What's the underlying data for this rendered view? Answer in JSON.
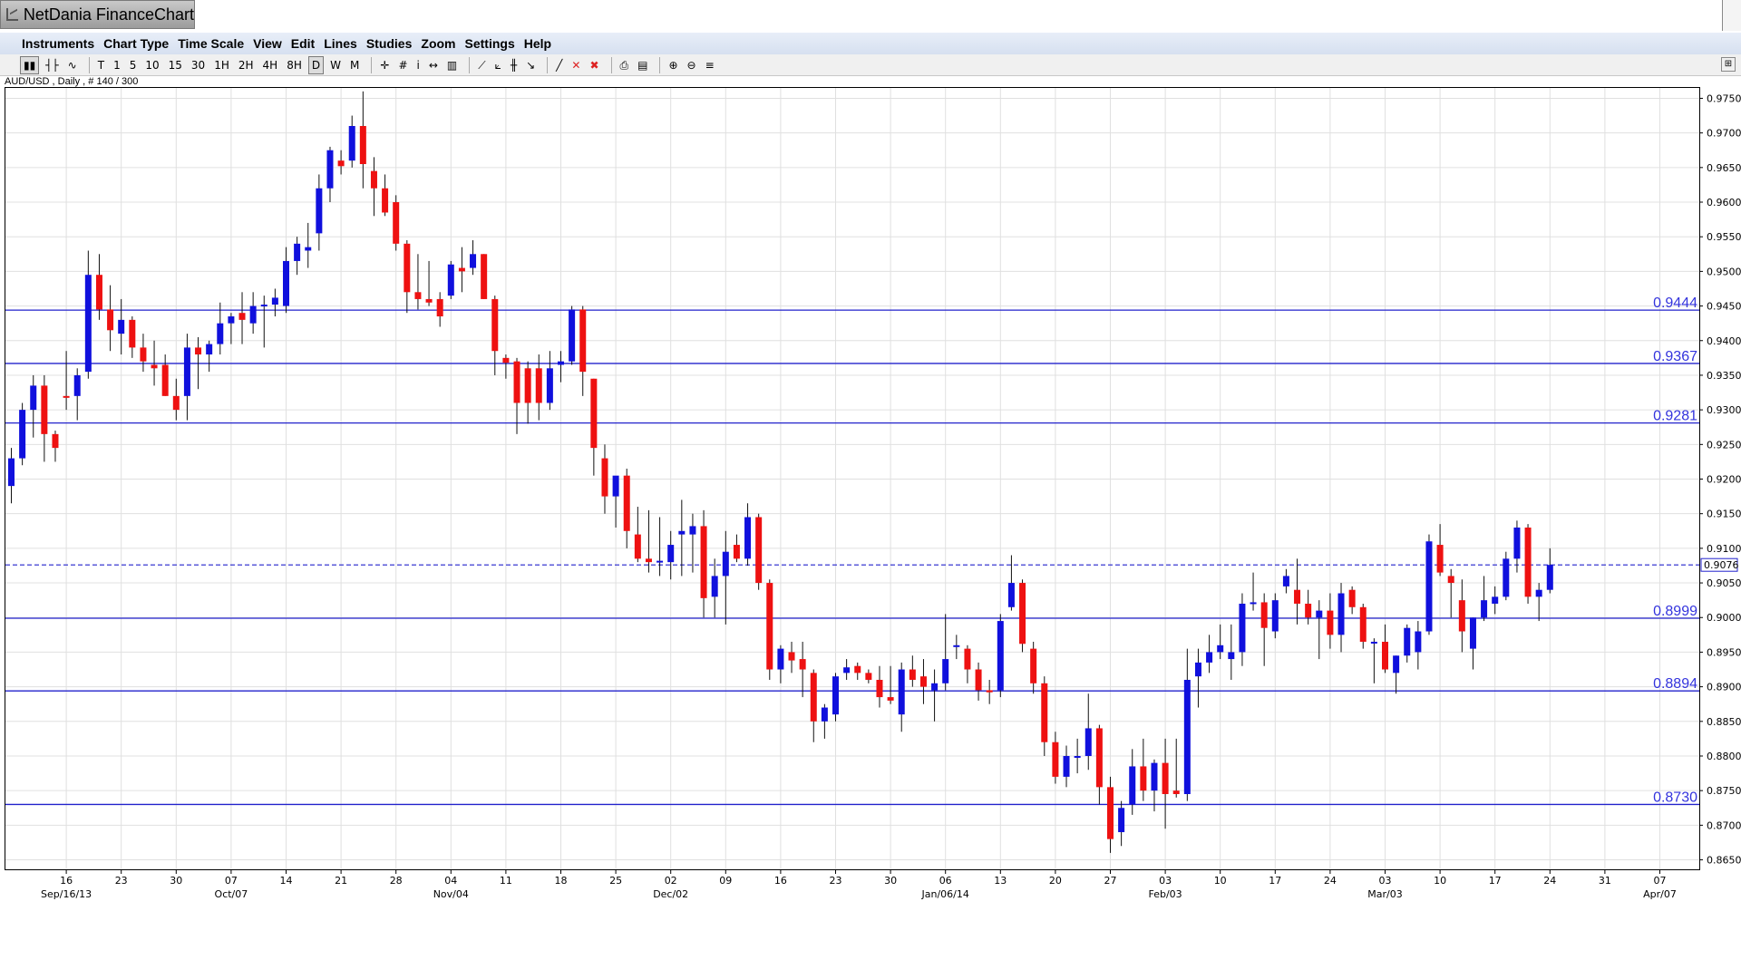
{
  "window": {
    "title": "NetDania FinanceChart"
  },
  "menu": [
    "Instruments",
    "Chart Type",
    "Time Scale",
    "View",
    "Edit",
    "Lines",
    "Studies",
    "Zoom",
    "Settings",
    "Help"
  ],
  "toolbar": {
    "timeframes": [
      "T",
      "1",
      "5",
      "10",
      "15",
      "30",
      "1H",
      "2H",
      "4H",
      "8H",
      "D",
      "W",
      "M"
    ],
    "active_timeframe": "D"
  },
  "colors": {
    "bull": "#1010dd",
    "bear": "#ee1111",
    "levels": "#2222cc",
    "last_price": "#2222cc"
  },
  "chart_data": {
    "type": "candlestick",
    "instrument_label": "AUD/USD , Daily , # 140 / 300",
    "y_axis": {
      "ylim": [
        0.8635,
        0.9765
      ],
      "ticks": [
        "0.8650",
        "0.8700",
        "0.8750",
        "0.8800",
        "0.8850",
        "0.8900",
        "0.8950",
        "0.9000",
        "0.9050",
        "0.9100",
        "0.9150",
        "0.9200",
        "0.9250",
        "0.9300",
        "0.9350",
        "0.9400",
        "0.9450",
        "0.9500",
        "0.9550",
        "0.9600",
        "0.9650",
        "0.9700",
        "0.9750"
      ]
    },
    "x_axis": {
      "day_labels": [
        "16",
        "23",
        "30",
        "07",
        "14",
        "21",
        "28",
        "04",
        "11",
        "18",
        "25",
        "02",
        "09",
        "16",
        "23",
        "30",
        "06",
        "13",
        "20",
        "27",
        "03",
        "10",
        "17",
        "24",
        "03",
        "10",
        "17",
        "24",
        "31",
        "07"
      ],
      "month_labels": [
        "Sep/16/13",
        "Oct/07",
        "Nov/04",
        "Dec/02",
        "Jan/06/14",
        "Feb/03",
        "Mar/03",
        "Apr/07"
      ],
      "label_slots": [
        5,
        10,
        15,
        20,
        25,
        30,
        35,
        40,
        45,
        50,
        55,
        60,
        65,
        70,
        75,
        80,
        85,
        90,
        95,
        100,
        105,
        110,
        115,
        120,
        125,
        130,
        135,
        140,
        145,
        150
      ],
      "month_label_at": [
        0,
        3,
        7,
        11,
        16,
        20,
        24,
        29
      ]
    },
    "horizontal_levels": [
      "0.9444",
      "0.9367",
      "0.9281",
      "0.8999",
      "0.8894",
      "0.8730"
    ],
    "last_price": "0.9076",
    "grid": true,
    "candles": [
      {
        "o": 0.919,
        "h": 0.9245,
        "l": 0.9165,
        "c": 0.923
      },
      {
        "o": 0.923,
        "h": 0.931,
        "l": 0.922,
        "c": 0.93
      },
      {
        "o": 0.93,
        "h": 0.935,
        "l": 0.926,
        "c": 0.9335
      },
      {
        "o": 0.9335,
        "h": 0.935,
        "l": 0.9225,
        "c": 0.9265
      },
      {
        "o": 0.9265,
        "h": 0.927,
        "l": 0.9225,
        "c": 0.9245
      },
      {
        "o": 0.932,
        "h": 0.9385,
        "l": 0.93,
        "c": 0.9318
      },
      {
        "o": 0.932,
        "h": 0.936,
        "l": 0.9285,
        "c": 0.935
      },
      {
        "o": 0.9355,
        "h": 0.953,
        "l": 0.9345,
        "c": 0.9495
      },
      {
        "o": 0.9495,
        "h": 0.9525,
        "l": 0.943,
        "c": 0.9445
      },
      {
        "o": 0.9445,
        "h": 0.948,
        "l": 0.9385,
        "c": 0.9415
      },
      {
        "o": 0.941,
        "h": 0.946,
        "l": 0.938,
        "c": 0.943
      },
      {
        "o": 0.943,
        "h": 0.9435,
        "l": 0.9375,
        "c": 0.939
      },
      {
        "o": 0.939,
        "h": 0.941,
        "l": 0.9355,
        "c": 0.937
      },
      {
        "o": 0.9365,
        "h": 0.94,
        "l": 0.9335,
        "c": 0.936
      },
      {
        "o": 0.9365,
        "h": 0.938,
        "l": 0.932,
        "c": 0.932
      },
      {
        "o": 0.932,
        "h": 0.9345,
        "l": 0.9285,
        "c": 0.93
      },
      {
        "o": 0.932,
        "h": 0.941,
        "l": 0.9285,
        "c": 0.939
      },
      {
        "o": 0.939,
        "h": 0.9405,
        "l": 0.933,
        "c": 0.938
      },
      {
        "o": 0.938,
        "h": 0.94,
        "l": 0.9355,
        "c": 0.9395
      },
      {
        "o": 0.9395,
        "h": 0.9455,
        "l": 0.938,
        "c": 0.9425
      },
      {
        "o": 0.9425,
        "h": 0.944,
        "l": 0.9395,
        "c": 0.9435
      },
      {
        "o": 0.944,
        "h": 0.947,
        "l": 0.9395,
        "c": 0.943
      },
      {
        "o": 0.9425,
        "h": 0.947,
        "l": 0.941,
        "c": 0.945
      },
      {
        "o": 0.945,
        "h": 0.9465,
        "l": 0.939,
        "c": 0.9452
      },
      {
        "o": 0.9452,
        "h": 0.9475,
        "l": 0.9435,
        "c": 0.9462
      },
      {
        "o": 0.945,
        "h": 0.9535,
        "l": 0.944,
        "c": 0.9515
      },
      {
        "o": 0.9515,
        "h": 0.955,
        "l": 0.9495,
        "c": 0.954
      },
      {
        "o": 0.953,
        "h": 0.957,
        "l": 0.9505,
        "c": 0.9535
      },
      {
        "o": 0.9555,
        "h": 0.964,
        "l": 0.953,
        "c": 0.962
      },
      {
        "o": 0.962,
        "h": 0.968,
        "l": 0.96,
        "c": 0.9675
      },
      {
        "o": 0.966,
        "h": 0.9675,
        "l": 0.964,
        "c": 0.9652
      },
      {
        "o": 0.966,
        "h": 0.9725,
        "l": 0.965,
        "c": 0.971
      },
      {
        "o": 0.971,
        "h": 0.976,
        "l": 0.962,
        "c": 0.9655
      },
      {
        "o": 0.9645,
        "h": 0.9665,
        "l": 0.958,
        "c": 0.962
      },
      {
        "o": 0.962,
        "h": 0.964,
        "l": 0.958,
        "c": 0.9585
      },
      {
        "o": 0.96,
        "h": 0.961,
        "l": 0.953,
        "c": 0.954
      },
      {
        "o": 0.954,
        "h": 0.9545,
        "l": 0.944,
        "c": 0.947
      },
      {
        "o": 0.947,
        "h": 0.9525,
        "l": 0.9445,
        "c": 0.946
      },
      {
        "o": 0.946,
        "h": 0.9515,
        "l": 0.945,
        "c": 0.9455
      },
      {
        "o": 0.946,
        "h": 0.947,
        "l": 0.942,
        "c": 0.9435
      },
      {
        "o": 0.9465,
        "h": 0.9515,
        "l": 0.946,
        "c": 0.951
      },
      {
        "o": 0.9505,
        "h": 0.9535,
        "l": 0.947,
        "c": 0.95
      },
      {
        "o": 0.9505,
        "h": 0.9545,
        "l": 0.9495,
        "c": 0.9525
      },
      {
        "o": 0.9525,
        "h": 0.9525,
        "l": 0.946,
        "c": 0.946
      },
      {
        "o": 0.946,
        "h": 0.9465,
        "l": 0.935,
        "c": 0.9385
      },
      {
        "o": 0.9375,
        "h": 0.938,
        "l": 0.9345,
        "c": 0.9368
      },
      {
        "o": 0.937,
        "h": 0.9375,
        "l": 0.9265,
        "c": 0.931
      },
      {
        "o": 0.936,
        "h": 0.937,
        "l": 0.928,
        "c": 0.931
      },
      {
        "o": 0.936,
        "h": 0.938,
        "l": 0.9285,
        "c": 0.931
      },
      {
        "o": 0.931,
        "h": 0.9385,
        "l": 0.93,
        "c": 0.936
      },
      {
        "o": 0.9365,
        "h": 0.9385,
        "l": 0.934,
        "c": 0.937
      },
      {
        "o": 0.937,
        "h": 0.945,
        "l": 0.9365,
        "c": 0.9445
      },
      {
        "o": 0.9445,
        "h": 0.945,
        "l": 0.932,
        "c": 0.9355
      },
      {
        "o": 0.9345,
        "h": 0.9345,
        "l": 0.9205,
        "c": 0.9245
      },
      {
        "o": 0.923,
        "h": 0.925,
        "l": 0.915,
        "c": 0.9175
      },
      {
        "o": 0.9175,
        "h": 0.92,
        "l": 0.913,
        "c": 0.9205
      },
      {
        "o": 0.9205,
        "h": 0.9215,
        "l": 0.91,
        "c": 0.9125
      },
      {
        "o": 0.912,
        "h": 0.916,
        "l": 0.908,
        "c": 0.9085
      },
      {
        "o": 0.9085,
        "h": 0.9155,
        "l": 0.9065,
        "c": 0.908
      },
      {
        "o": 0.908,
        "h": 0.9145,
        "l": 0.906,
        "c": 0.9082
      },
      {
        "o": 0.908,
        "h": 0.9125,
        "l": 0.9055,
        "c": 0.9105
      },
      {
        "o": 0.912,
        "h": 0.917,
        "l": 0.906,
        "c": 0.9125
      },
      {
        "o": 0.912,
        "h": 0.915,
        "l": 0.9065,
        "c": 0.9132
      },
      {
        "o": 0.9132,
        "h": 0.9155,
        "l": 0.9,
        "c": 0.9028
      },
      {
        "o": 0.903,
        "h": 0.9085,
        "l": 0.9,
        "c": 0.906
      },
      {
        "o": 0.906,
        "h": 0.9125,
        "l": 0.899,
        "c": 0.9095
      },
      {
        "o": 0.9105,
        "h": 0.912,
        "l": 0.908,
        "c": 0.9085
      },
      {
        "o": 0.9085,
        "h": 0.9165,
        "l": 0.9075,
        "c": 0.9145
      },
      {
        "o": 0.9145,
        "h": 0.915,
        "l": 0.904,
        "c": 0.905
      },
      {
        "o": 0.905,
        "h": 0.9055,
        "l": 0.891,
        "c": 0.8925
      },
      {
        "o": 0.8925,
        "h": 0.896,
        "l": 0.8905,
        "c": 0.8955
      },
      {
        "o": 0.895,
        "h": 0.8965,
        "l": 0.892,
        "c": 0.8938
      },
      {
        "o": 0.894,
        "h": 0.8965,
        "l": 0.8885,
        "c": 0.8925
      },
      {
        "o": 0.892,
        "h": 0.8925,
        "l": 0.882,
        "c": 0.885
      },
      {
        "o": 0.885,
        "h": 0.8875,
        "l": 0.8825,
        "c": 0.887
      },
      {
        "o": 0.886,
        "h": 0.892,
        "l": 0.885,
        "c": 0.8915
      },
      {
        "o": 0.892,
        "h": 0.894,
        "l": 0.891,
        "c": 0.8928
      },
      {
        "o": 0.893,
        "h": 0.8935,
        "l": 0.891,
        "c": 0.892
      },
      {
        "o": 0.892,
        "h": 0.8925,
        "l": 0.8905,
        "c": 0.891
      },
      {
        "o": 0.891,
        "h": 0.893,
        "l": 0.887,
        "c": 0.8885
      },
      {
        "o": 0.8885,
        "h": 0.893,
        "l": 0.8875,
        "c": 0.888
      },
      {
        "o": 0.886,
        "h": 0.8935,
        "l": 0.8835,
        "c": 0.8925
      },
      {
        "o": 0.8925,
        "h": 0.8945,
        "l": 0.89,
        "c": 0.891
      },
      {
        "o": 0.8915,
        "h": 0.894,
        "l": 0.8875,
        "c": 0.89
      },
      {
        "o": 0.8895,
        "h": 0.8925,
        "l": 0.885,
        "c": 0.8905
      },
      {
        "o": 0.8905,
        "h": 0.9005,
        "l": 0.8895,
        "c": 0.894
      },
      {
        "o": 0.896,
        "h": 0.8975,
        "l": 0.894,
        "c": 0.896
      },
      {
        "o": 0.8955,
        "h": 0.896,
        "l": 0.8905,
        "c": 0.8925
      },
      {
        "o": 0.8925,
        "h": 0.8935,
        "l": 0.888,
        "c": 0.8895
      },
      {
        "o": 0.8895,
        "h": 0.891,
        "l": 0.8875,
        "c": 0.8892
      },
      {
        "o": 0.8895,
        "h": 0.9005,
        "l": 0.8885,
        "c": 0.8995
      },
      {
        "o": 0.9015,
        "h": 0.909,
        "l": 0.901,
        "c": 0.905
      },
      {
        "o": 0.905,
        "h": 0.9055,
        "l": 0.895,
        "c": 0.8962
      },
      {
        "o": 0.8955,
        "h": 0.8965,
        "l": 0.889,
        "c": 0.8905
      },
      {
        "o": 0.8905,
        "h": 0.8915,
        "l": 0.88,
        "c": 0.882
      },
      {
        "o": 0.882,
        "h": 0.8835,
        "l": 0.876,
        "c": 0.877
      },
      {
        "o": 0.877,
        "h": 0.8815,
        "l": 0.8755,
        "c": 0.88
      },
      {
        "o": 0.88,
        "h": 0.8825,
        "l": 0.8775,
        "c": 0.88
      },
      {
        "o": 0.88,
        "h": 0.889,
        "l": 0.878,
        "c": 0.884
      },
      {
        "o": 0.884,
        "h": 0.8845,
        "l": 0.873,
        "c": 0.8755
      },
      {
        "o": 0.8755,
        "h": 0.877,
        "l": 0.866,
        "c": 0.868
      },
      {
        "o": 0.869,
        "h": 0.8735,
        "l": 0.867,
        "c": 0.8725
      },
      {
        "o": 0.873,
        "h": 0.881,
        "l": 0.8715,
        "c": 0.8785
      },
      {
        "o": 0.8785,
        "h": 0.8825,
        "l": 0.8735,
        "c": 0.875
      },
      {
        "o": 0.875,
        "h": 0.8795,
        "l": 0.872,
        "c": 0.879
      },
      {
        "o": 0.879,
        "h": 0.8825,
        "l": 0.8695,
        "c": 0.8745
      },
      {
        "o": 0.875,
        "h": 0.8825,
        "l": 0.874,
        "c": 0.8745
      },
      {
        "o": 0.8745,
        "h": 0.8955,
        "l": 0.8735,
        "c": 0.891
      },
      {
        "o": 0.8915,
        "h": 0.8955,
        "l": 0.887,
        "c": 0.8935
      },
      {
        "o": 0.8935,
        "h": 0.8975,
        "l": 0.892,
        "c": 0.895
      },
      {
        "o": 0.895,
        "h": 0.899,
        "l": 0.894,
        "c": 0.896
      },
      {
        "o": 0.894,
        "h": 0.899,
        "l": 0.891,
        "c": 0.895
      },
      {
        "o": 0.895,
        "h": 0.9035,
        "l": 0.893,
        "c": 0.902
      },
      {
        "o": 0.902,
        "h": 0.9065,
        "l": 0.901,
        "c": 0.9022
      },
      {
        "o": 0.9022,
        "h": 0.9035,
        "l": 0.893,
        "c": 0.8985
      },
      {
        "o": 0.898,
        "h": 0.9035,
        "l": 0.897,
        "c": 0.9025
      },
      {
        "o": 0.9045,
        "h": 0.907,
        "l": 0.9035,
        "c": 0.906
      },
      {
        "o": 0.904,
        "h": 0.9085,
        "l": 0.899,
        "c": 0.902
      },
      {
        "o": 0.902,
        "h": 0.904,
        "l": 0.899,
        "c": 0.9
      },
      {
        "o": 0.9,
        "h": 0.9025,
        "l": 0.894,
        "c": 0.901
      },
      {
        "o": 0.901,
        "h": 0.9035,
        "l": 0.8955,
        "c": 0.8975
      },
      {
        "o": 0.8975,
        "h": 0.905,
        "l": 0.895,
        "c": 0.9035
      },
      {
        "o": 0.904,
        "h": 0.9045,
        "l": 0.9005,
        "c": 0.9015
      },
      {
        "o": 0.9015,
        "h": 0.902,
        "l": 0.8955,
        "c": 0.8965
      },
      {
        "o": 0.8965,
        "h": 0.897,
        "l": 0.8905,
        "c": 0.8965
      },
      {
        "o": 0.8965,
        "h": 0.899,
        "l": 0.892,
        "c": 0.8925
      },
      {
        "o": 0.892,
        "h": 0.8945,
        "l": 0.889,
        "c": 0.8945
      },
      {
        "o": 0.8945,
        "h": 0.899,
        "l": 0.8935,
        "c": 0.8985
      },
      {
        "o": 0.895,
        "h": 0.8995,
        "l": 0.8925,
        "c": 0.898
      },
      {
        "o": 0.898,
        "h": 0.912,
        "l": 0.8975,
        "c": 0.911
      },
      {
        "o": 0.9105,
        "h": 0.9135,
        "l": 0.906,
        "c": 0.9065
      },
      {
        "o": 0.906,
        "h": 0.907,
        "l": 0.9,
        "c": 0.905
      },
      {
        "o": 0.9025,
        "h": 0.9055,
        "l": 0.895,
        "c": 0.898
      },
      {
        "o": 0.8955,
        "h": 0.9,
        "l": 0.8925,
        "c": 0.9
      },
      {
        "o": 0.9,
        "h": 0.906,
        "l": 0.8995,
        "c": 0.9025
      },
      {
        "o": 0.902,
        "h": 0.9045,
        "l": 0.9005,
        "c": 0.903
      },
      {
        "o": 0.903,
        "h": 0.9095,
        "l": 0.9025,
        "c": 0.9085
      },
      {
        "o": 0.9085,
        "h": 0.914,
        "l": 0.9065,
        "c": 0.913
      },
      {
        "o": 0.913,
        "h": 0.9135,
        "l": 0.902,
        "c": 0.903
      },
      {
        "o": 0.903,
        "h": 0.905,
        "l": 0.8995,
        "c": 0.904
      },
      {
        "o": 0.904,
        "h": 0.91,
        "l": 0.9035,
        "c": 0.9076
      }
    ]
  }
}
